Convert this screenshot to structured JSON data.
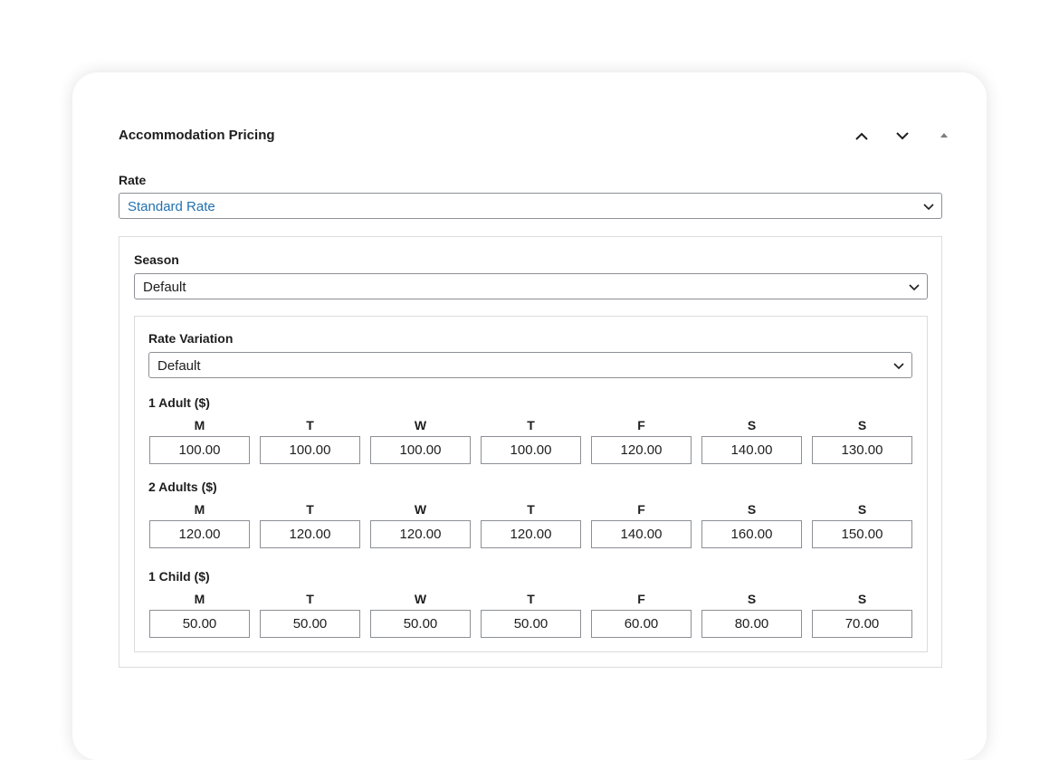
{
  "panel": {
    "title": "Accommodation Pricing"
  },
  "rate": {
    "label": "Rate",
    "value": "Standard Rate"
  },
  "season": {
    "label": "Season",
    "value": "Default"
  },
  "variation": {
    "label": "Rate Variation",
    "value": "Default"
  },
  "groups": [
    {
      "label": "1 Adult ($)",
      "days": [
        "M",
        "T",
        "W",
        "T",
        "F",
        "S",
        "S"
      ],
      "values": [
        "100.00",
        "100.00",
        "100.00",
        "100.00",
        "120.00",
        "140.00",
        "130.00"
      ]
    },
    {
      "label": "2 Adults ($)",
      "days": [
        "M",
        "T",
        "W",
        "T",
        "F",
        "S",
        "S"
      ],
      "values": [
        "120.00",
        "120.00",
        "120.00",
        "120.00",
        "140.00",
        "160.00",
        "150.00"
      ]
    },
    {
      "label": "1 Child ($)",
      "days": [
        "M",
        "T",
        "W",
        "T",
        "F",
        "S",
        "S"
      ],
      "values": [
        "50.00",
        "50.00",
        "50.00",
        "50.00",
        "60.00",
        "80.00",
        "70.00"
      ]
    }
  ]
}
